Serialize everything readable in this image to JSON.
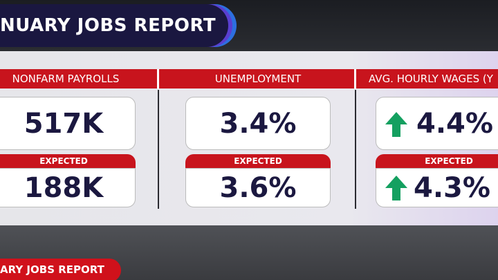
{
  "header": {
    "title": "NUARY JOBS REPORT"
  },
  "columns": [
    {
      "label": "NONFARM PAYROLLS",
      "actual": "517K",
      "expected_label": "EXPECTED",
      "expected": "188K"
    },
    {
      "label": "UNEMPLOYMENT",
      "actual": "3.4%",
      "expected_label": "EXPECTED",
      "expected": "3.6%"
    },
    {
      "label": "AVG. HOURLY WAGES (Y",
      "actual": "4.4%",
      "expected_label": "EXPECTED",
      "expected": "4.3%"
    }
  ],
  "ticker": {
    "text": "ARY JOBS REPORT"
  }
}
